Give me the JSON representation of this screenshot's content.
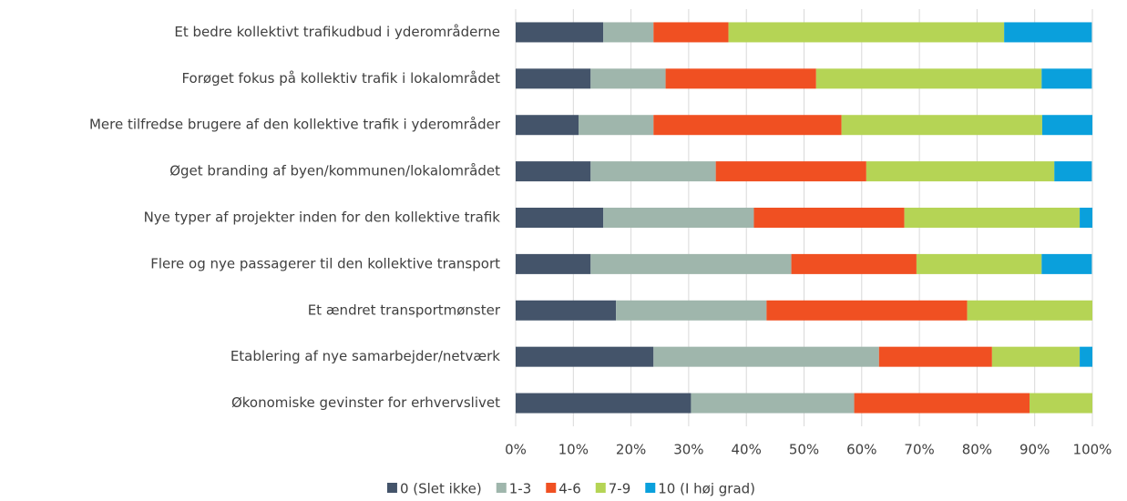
{
  "chart_data": {
    "type": "stacked_barh",
    "categories": [
      "Et bedre kollektivt trafikudbud i yderområderne",
      "Forøget fokus på kollektiv trafik i lokalområdet",
      "Mere tilfredse brugere af den kollektive trafik i yderområder",
      "Øget branding af byen/kommunen/lokalområdet",
      "Nye typer af projekter inden for den kollektive trafik",
      "Flere og nye passagerer til den kollektive transport",
      "Et ændret transportmønster",
      "Etablering af nye samarbejder/netværk",
      "Økonomiske gevinster for erhvervslivet"
    ],
    "series": [
      {
        "name": "0 (Slet ikke)",
        "color": "#44546a",
        "values": [
          15.2,
          13.0,
          10.9,
          13.0,
          15.2,
          13.0,
          17.4,
          23.9,
          30.4
        ]
      },
      {
        "name": "1-3",
        "color": "#9fb6ac",
        "values": [
          8.7,
          13.0,
          13.0,
          21.7,
          26.1,
          34.8,
          26.1,
          39.1,
          28.3
        ]
      },
      {
        "name": "4-6",
        "color": "#f05022",
        "values": [
          13.0,
          26.1,
          32.6,
          26.1,
          26.1,
          21.7,
          34.8,
          19.6,
          30.4
        ]
      },
      {
        "name": "7-9",
        "color": "#b5d455",
        "values": [
          47.8,
          39.1,
          34.8,
          32.6,
          30.4,
          21.7,
          21.7,
          15.2,
          10.9
        ]
      },
      {
        "name": "10 (I høj grad)",
        "color": "#0aa0dc",
        "values": [
          15.2,
          8.7,
          8.7,
          6.5,
          2.2,
          8.7,
          0,
          2.2,
          0
        ]
      }
    ],
    "xlim": [
      0,
      100
    ],
    "xticks": [
      {
        "value": 0,
        "label": "0%"
      },
      {
        "value": 10,
        "label": "10%"
      },
      {
        "value": 20,
        "label": "20%"
      },
      {
        "value": 30,
        "label": "30%"
      },
      {
        "value": 40,
        "label": "40%"
      },
      {
        "value": 50,
        "label": "50%"
      },
      {
        "value": 60,
        "label": "60%"
      },
      {
        "value": 70,
        "label": "70%"
      },
      {
        "value": 80,
        "label": "80%"
      },
      {
        "value": 90,
        "label": "90%"
      },
      {
        "value": 100,
        "label": "100%"
      }
    ],
    "grid": true,
    "legend": "bottom"
  }
}
